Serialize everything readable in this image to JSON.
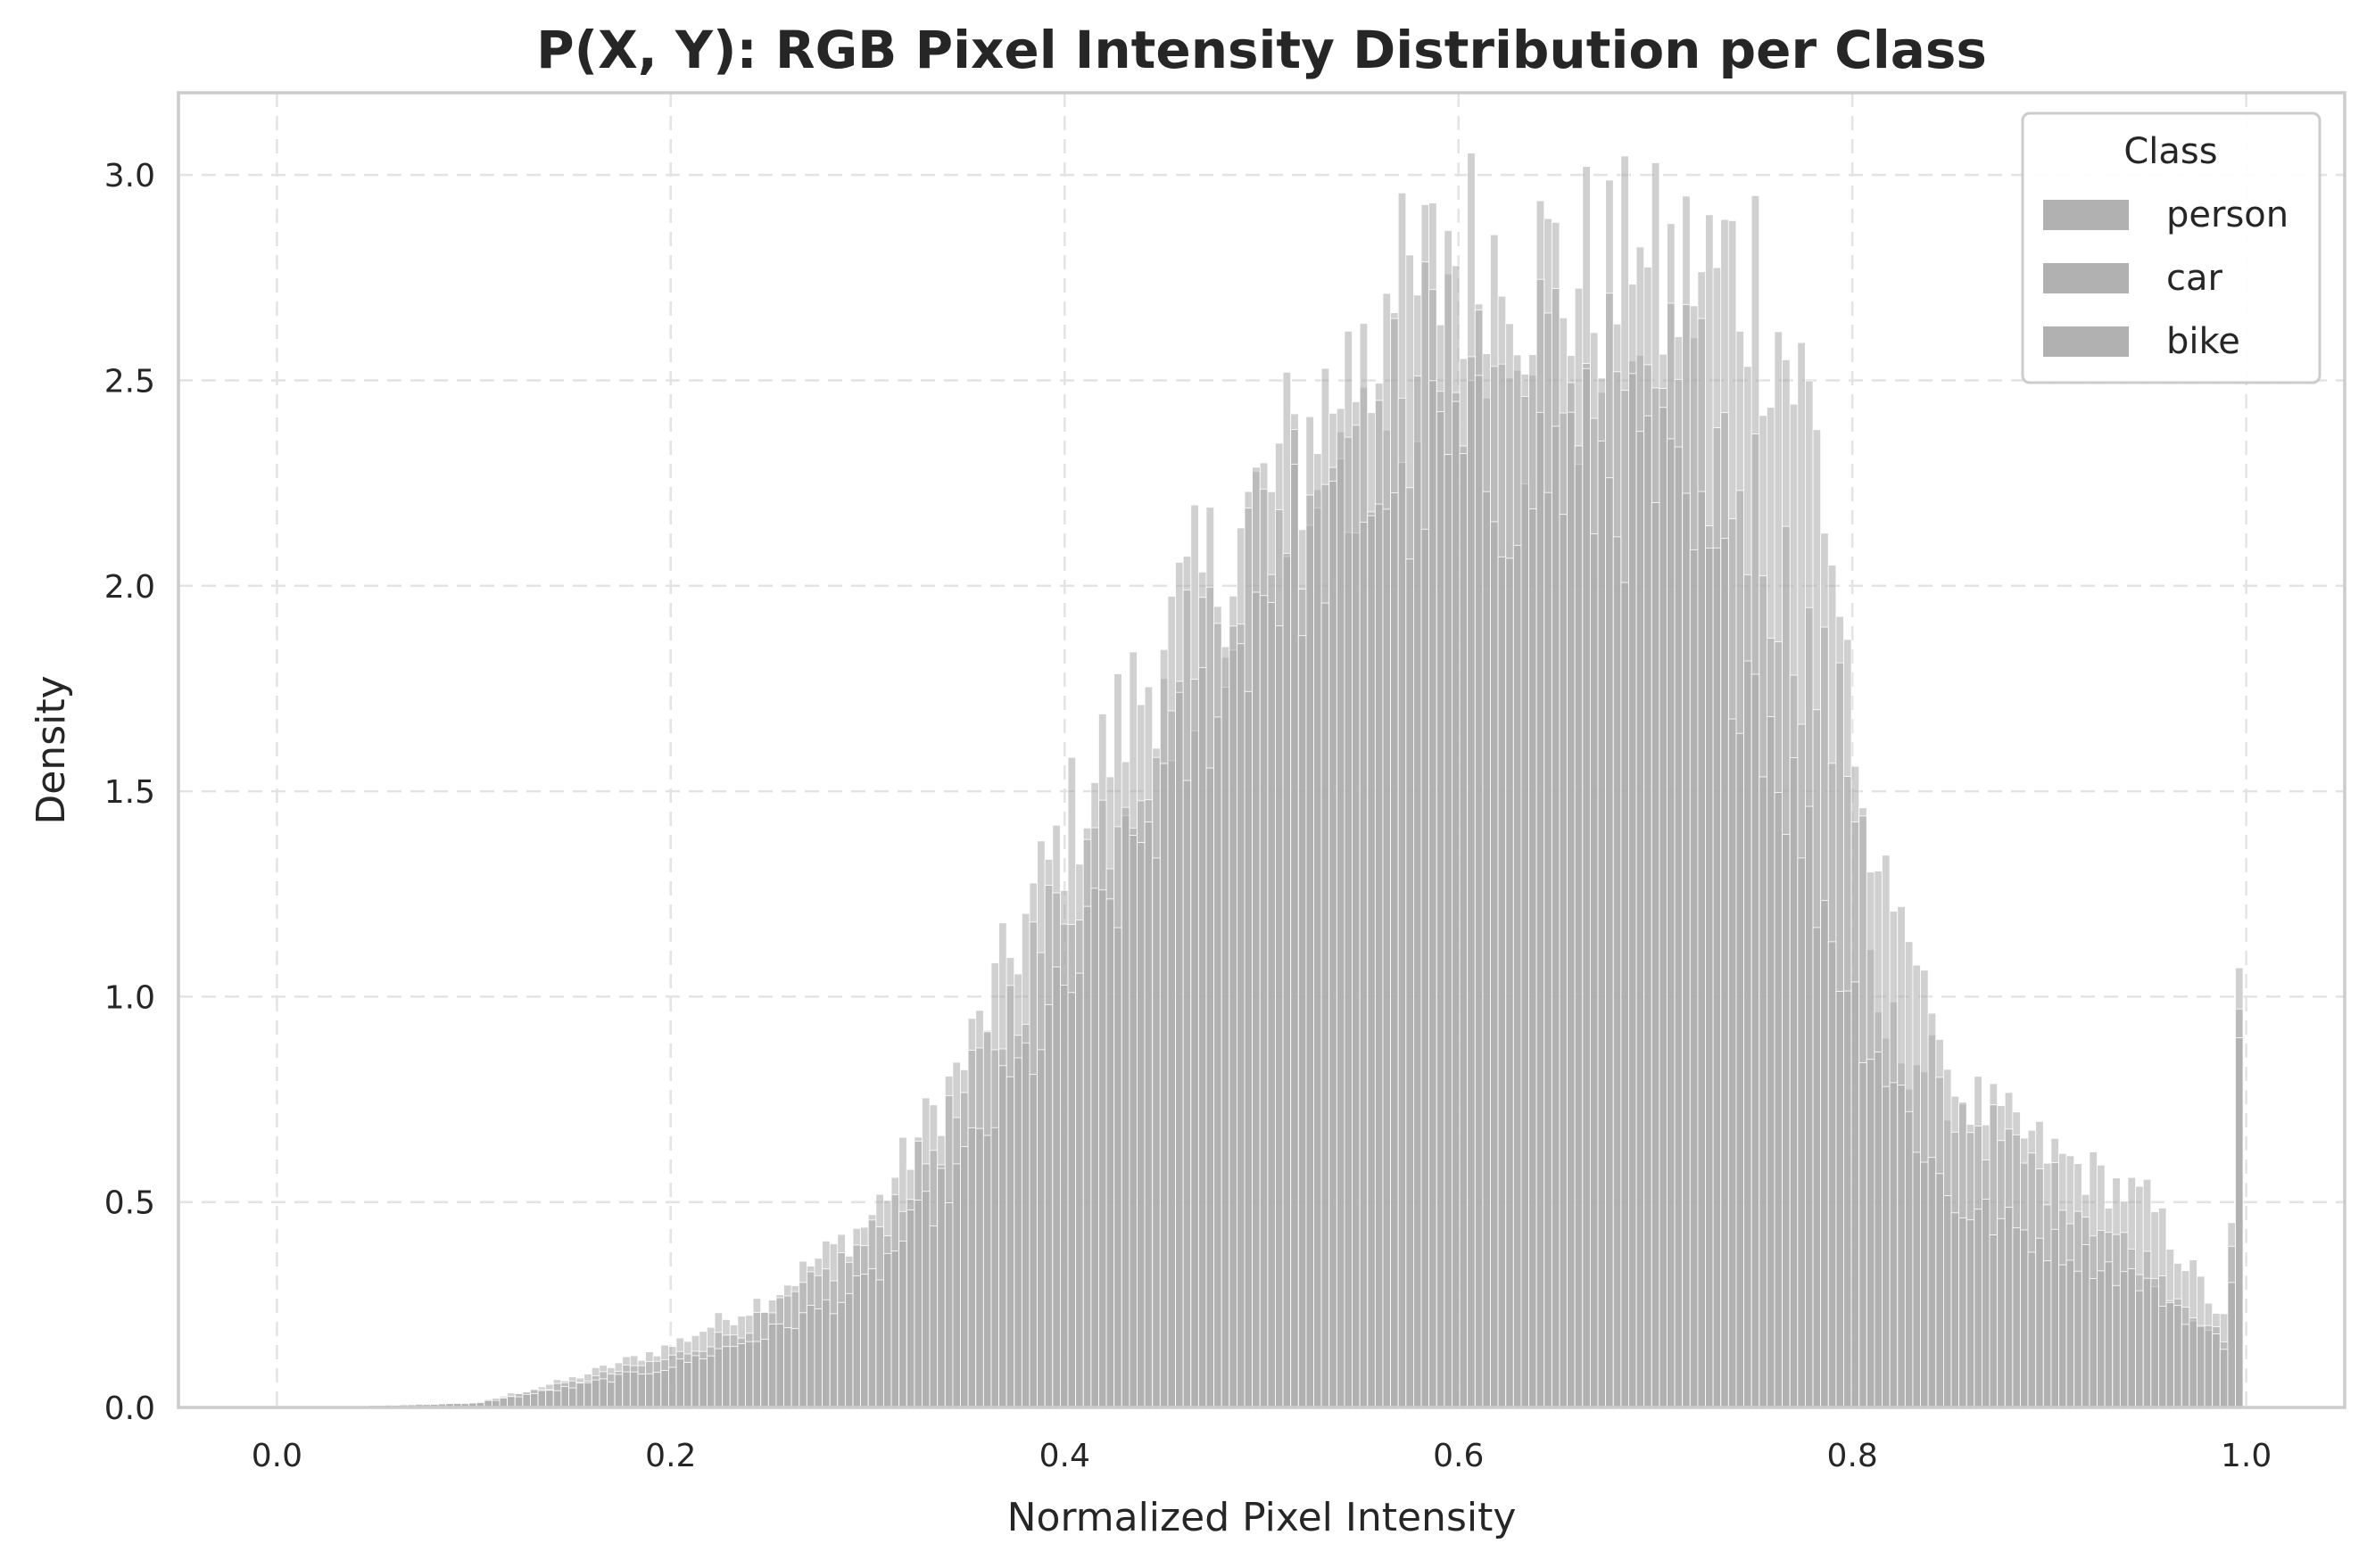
{
  "chart_data": {
    "type": "bar",
    "subtype": "overlaid histogram",
    "title": "P(X, Y): RGB Pixel Intensity Distribution per Class",
    "xlabel": "Normalized Pixel Intensity",
    "ylabel": "Density",
    "xlim": [
      -0.05,
      1.05
    ],
    "ylim": [
      0,
      3.2
    ],
    "xticks": [
      "0.0",
      "0.2",
      "0.4",
      "0.6",
      "0.8",
      "1.0"
    ],
    "yticks": [
      "0.0",
      "0.5",
      "1.0",
      "1.5",
      "2.0",
      "2.5",
      "3.0"
    ],
    "grid": true,
    "legend": {
      "title": "Class",
      "position": "top-right",
      "entries": [
        "person",
        "car",
        "bike"
      ]
    },
    "bin_width": 0.0039,
    "bin_starts_at": 0.0,
    "bar_color": "#a9a9a9",
    "bar_edge_color": "#ffffff",
    "series": [
      {
        "name": "person",
        "density_profile": {
          "x": [
            0.0,
            0.1,
            0.15,
            0.2,
            0.25,
            0.3,
            0.35,
            0.4,
            0.45,
            0.5,
            0.55,
            0.6,
            0.65,
            0.7,
            0.75,
            0.78,
            0.8,
            0.81,
            0.85,
            0.9,
            0.95,
            0.99,
            1.0
          ],
          "y": [
            0.0,
            0.01,
            0.07,
            0.15,
            0.27,
            0.45,
            0.85,
            1.4,
            1.85,
            2.2,
            2.55,
            2.8,
            2.75,
            2.72,
            2.78,
            2.4,
            1.75,
            0.95,
            0.78,
            0.62,
            0.5,
            0.2,
            1.07
          ]
        }
      },
      {
        "name": "car",
        "density_profile": {
          "x": [
            0.0,
            0.1,
            0.15,
            0.2,
            0.25,
            0.3,
            0.35,
            0.4,
            0.45,
            0.5,
            0.55,
            0.6,
            0.65,
            0.7,
            0.75,
            0.8,
            0.85,
            0.9,
            0.95,
            0.99,
            1.0
          ],
          "y": [
            0.0,
            0.01,
            0.06,
            0.12,
            0.22,
            0.4,
            0.75,
            1.25,
            1.7,
            2.15,
            2.4,
            2.6,
            2.5,
            2.55,
            2.2,
            1.55,
            0.75,
            0.55,
            0.35,
            0.15,
            0.97
          ]
        }
      },
      {
        "name": "bike",
        "density_profile": {
          "x": [
            0.0,
            0.1,
            0.15,
            0.2,
            0.25,
            0.3,
            0.35,
            0.4,
            0.45,
            0.5,
            0.55,
            0.6,
            0.65,
            0.7,
            0.75,
            0.8,
            0.85,
            0.9,
            0.95,
            0.99,
            1.0
          ],
          "y": [
            0.0,
            0.01,
            0.05,
            0.1,
            0.18,
            0.3,
            0.6,
            1.0,
            1.5,
            2.0,
            2.25,
            2.3,
            2.3,
            2.25,
            1.8,
            1.0,
            0.5,
            0.4,
            0.3,
            0.15,
            0.9
          ]
        }
      }
    ]
  }
}
